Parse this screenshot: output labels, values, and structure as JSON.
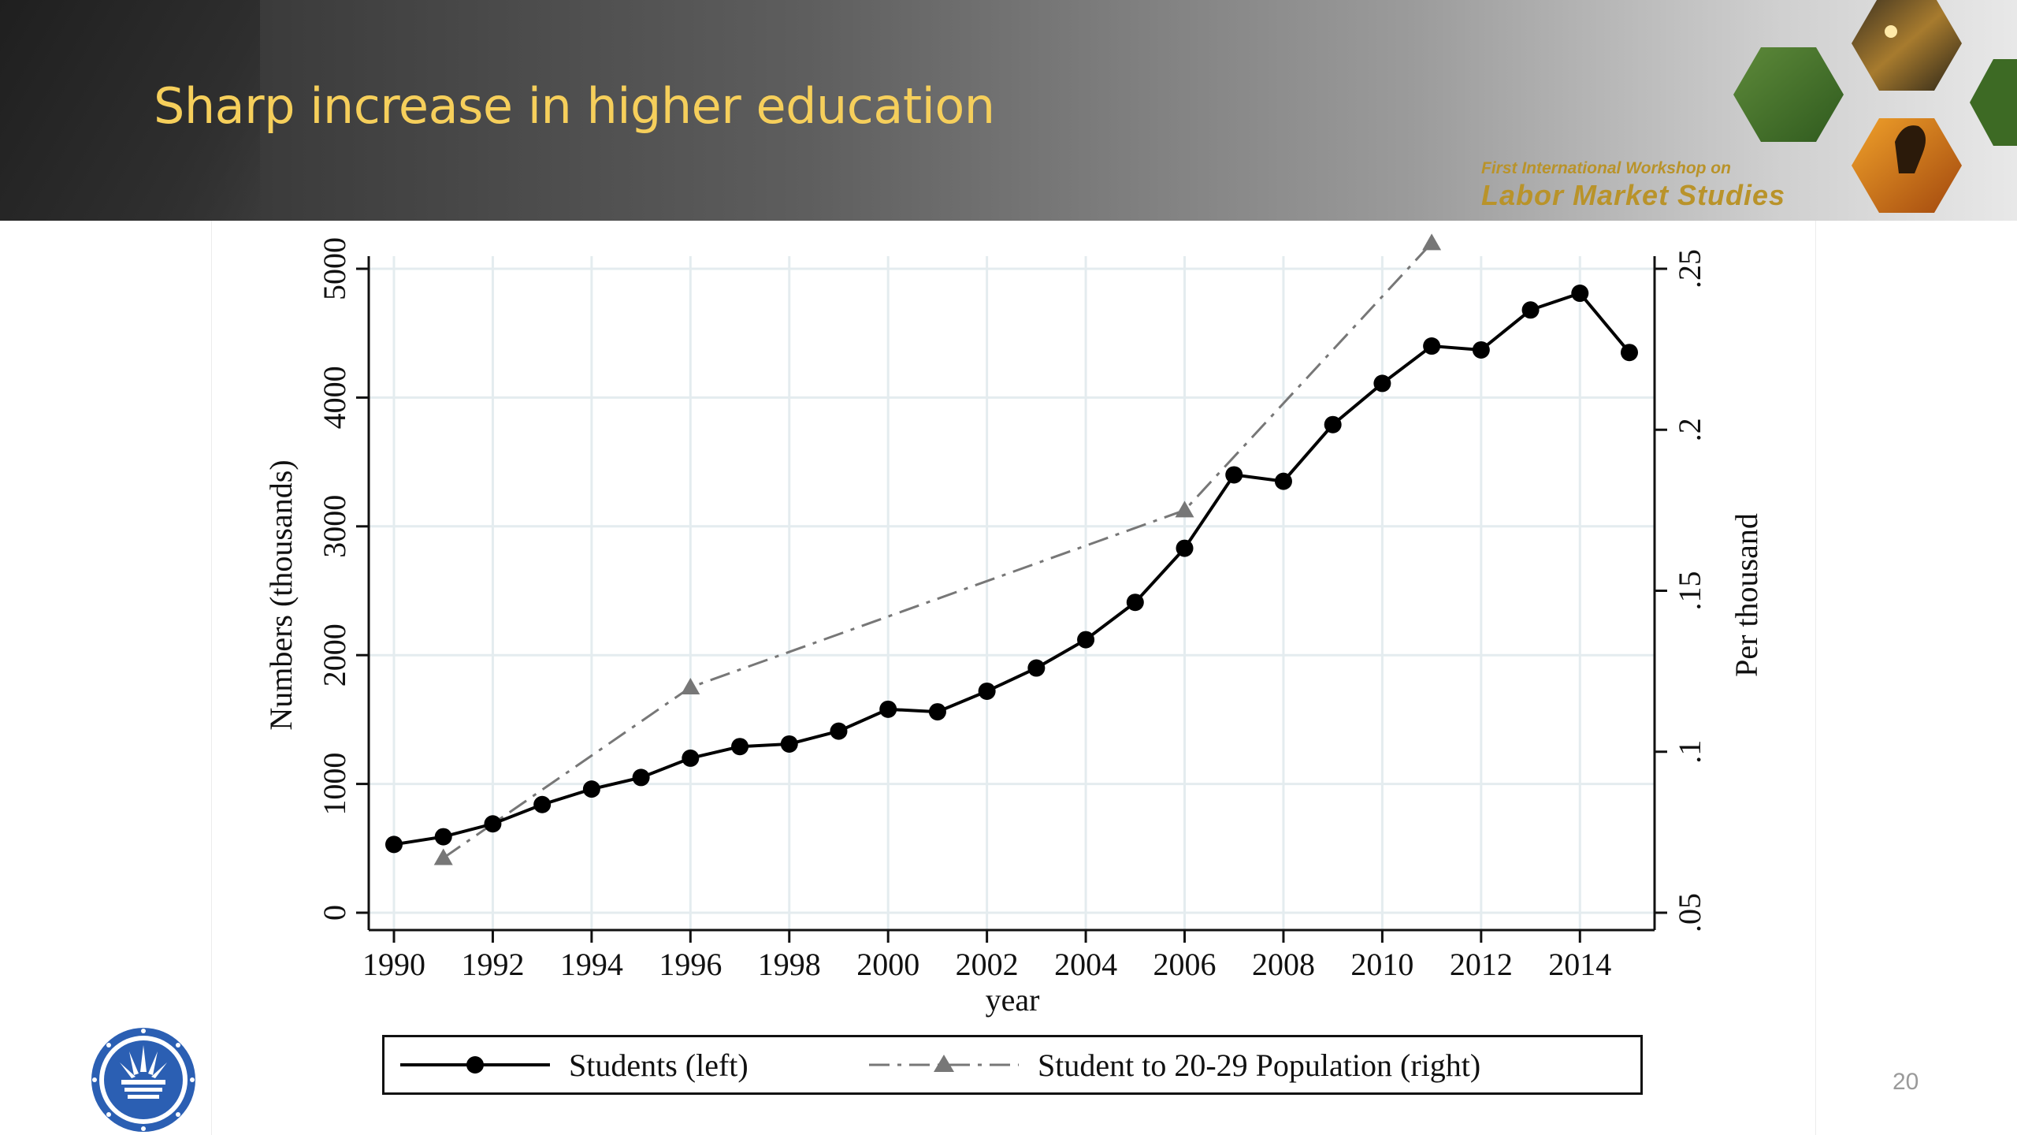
{
  "slide": {
    "title": "Sharp increase in higher education",
    "workshop_line1": "First International Workshop on",
    "workshop_line2": "Labor Market Studies",
    "page_number": "20"
  },
  "chart_data": {
    "type": "line",
    "xlabel": "year",
    "ylabel_left": "Numbers (thousands)",
    "ylabel_right": "Per thousand",
    "xlim": [
      1990,
      2015
    ],
    "ylim_left": [
      0,
      5000
    ],
    "ylim_right": [
      0.05,
      0.25
    ],
    "x_ticks": [
      "1990",
      "1992",
      "1994",
      "1996",
      "1998",
      "2000",
      "2002",
      "2004",
      "2006",
      "2008",
      "2010",
      "2012",
      "2014"
    ],
    "y_left_ticks": [
      "0",
      "1000",
      "2000",
      "3000",
      "4000",
      "5000"
    ],
    "y_right_ticks": [
      ".05",
      ".1",
      ".15",
      ".2",
      ".25"
    ],
    "grid": true,
    "legend_position": "bottom",
    "series": [
      {
        "name": "Students (left)",
        "axis": "left",
        "color": "#000000",
        "style": "solid",
        "marker": "circle",
        "x": [
          1990,
          1991,
          1992,
          1993,
          1994,
          1995,
          1996,
          1997,
          1998,
          1999,
          2000,
          2001,
          2002,
          2003,
          2004,
          2005,
          2006,
          2007,
          2008,
          2009,
          2010,
          2011,
          2012,
          2013,
          2014,
          2015
        ],
        "values": [
          530,
          590,
          690,
          840,
          960,
          1050,
          1200,
          1290,
          1310,
          1410,
          1580,
          1560,
          1720,
          1900,
          2120,
          2410,
          2830,
          3400,
          3350,
          3790,
          4110,
          4400,
          4370,
          4680,
          4810,
          4350
        ]
      },
      {
        "name": "Student to 20-29 Population (right)",
        "axis": "right",
        "color": "#777777",
        "style": "dash-dot",
        "marker": "triangle",
        "x": [
          1991,
          1996,
          2006,
          2011
        ],
        "values": [
          0.067,
          0.12,
          0.175,
          0.258
        ]
      }
    ]
  }
}
